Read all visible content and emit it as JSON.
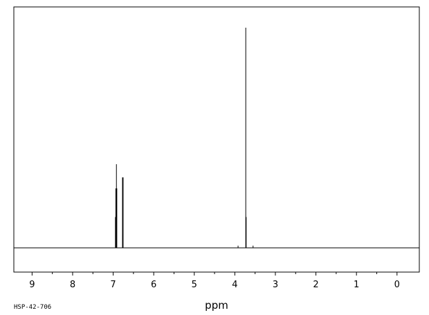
{
  "chart_data": {
    "type": "line",
    "title": "",
    "xlabel": "ppm",
    "ylabel": "",
    "xlim": [
      9.45,
      -0.55
    ],
    "ylim": [
      0,
      100
    ],
    "x_reversed": true,
    "grid": false,
    "legend": "none",
    "xticks": [
      "9",
      "8",
      "7",
      "6",
      "5",
      "4",
      "3",
      "2",
      "1",
      "0"
    ],
    "x_tick_values": [
      9,
      8,
      7,
      6,
      5,
      4,
      3,
      2,
      1,
      0
    ],
    "x_minor_tick_values": [
      8.5,
      7.5,
      6.5,
      5.5,
      4.5,
      3.5,
      2.5,
      1.5,
      0.5
    ],
    "series": [
      {
        "peaks": [
          {
            "x": 6.945,
            "y": 14
          },
          {
            "x": 6.935,
            "y": 27
          },
          {
            "x": 6.92,
            "y": 38
          },
          {
            "x": 6.91,
            "y": 27
          },
          {
            "x": 6.77,
            "y": 32
          },
          {
            "x": 6.755,
            "y": 32
          },
          {
            "x": 6.765,
            "y": 6
          },
          {
            "x": 3.73,
            "y": 100
          },
          {
            "x": 3.72,
            "y": 14
          },
          {
            "x": 3.92,
            "y": 1
          },
          {
            "x": 3.55,
            "y": 1
          }
        ]
      }
    ]
  },
  "footer": {
    "sample_id": "HSP-42-706"
  },
  "colors": {
    "trace": "#000000",
    "frame": "#000000",
    "background": "#ffffff"
  }
}
